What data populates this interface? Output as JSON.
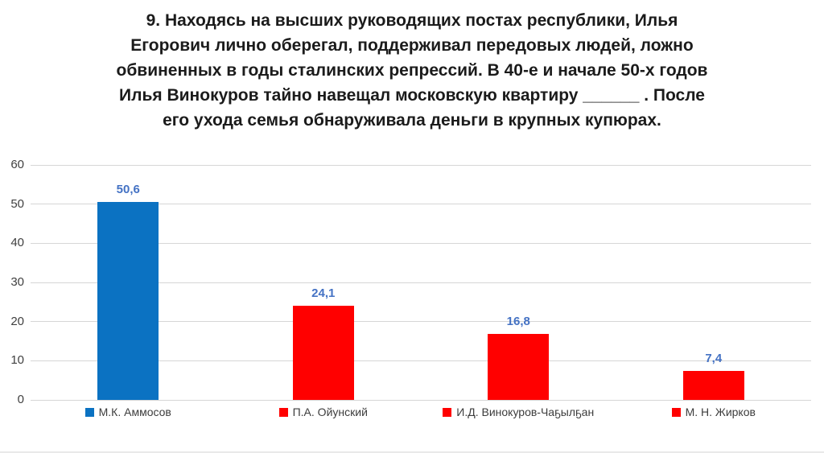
{
  "title": {
    "lines": [
      "9. Находясь на высших руководящих постах республики, Илья",
      "Егорович лично оберегал, поддерживал передовых людей, ложно",
      "обвиненных в годы сталинских репрессий. В 40-е и начале 50-х годов",
      "Илья Винокуров тайно навещал московскую квартиру ______ . После",
      "его ухода семья обнаруживала деньги в крупных купюрах."
    ]
  },
  "chart_data": {
    "type": "bar",
    "title": "9. Находясь на высших руководящих постах республики, Илья Егорович лично оберегал, поддерживал передовых людей, ложно обвиненных в годы сталинских репрессий. В 40-е и начале 50-х годов Илья Винокуров тайно навещал московскую квартиру ______ . После его ухода семья обнаруживала деньги в крупных купюрах.",
    "xlabel": "",
    "ylabel": "",
    "categories": [
      "М.К. Аммосов",
      "П.А. Ойунский",
      "И.Д. Винокуров-Чаҕылҕан",
      "М. Н. Жирков"
    ],
    "values": [
      50.6,
      24.1,
      16.8,
      7.4
    ],
    "value_labels": [
      "50,6",
      "24,1",
      "16,8",
      "7,4"
    ],
    "bar_colors": [
      "#0b72c2",
      "#ff0000",
      "#ff0000",
      "#ff0000"
    ],
    "data_label_color": "#4472c4",
    "ylim": [
      0,
      60
    ],
    "yticks": [
      0,
      10,
      20,
      30,
      40,
      50,
      60
    ],
    "grid": true,
    "gridline_color": "#d6d6d6",
    "tick_label_color": "#404040",
    "legend_position": "bottom",
    "legend_text_color": "#3d3d3d"
  }
}
